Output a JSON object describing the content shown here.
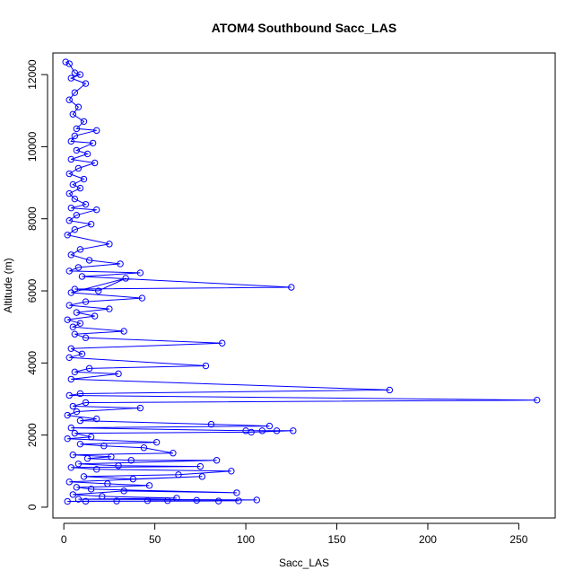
{
  "chart_data": {
    "type": "scatter",
    "title": "ATOM4 Southbound Sacc_LAS",
    "xlabel": "Sacc_LAS",
    "ylabel": "Altitude (m)",
    "xlim": [
      -6,
      270
    ],
    "ylim": [
      -300,
      12600
    ],
    "xticks": [
      0,
      50,
      100,
      150,
      200,
      250
    ],
    "yticks": [
      0,
      2000,
      4000,
      6000,
      8000,
      10000,
      12000
    ],
    "grid": false,
    "legend": "none",
    "series": [
      {
        "color": "#0000ff",
        "marker": "open-circle",
        "line": true,
        "points": [
          [
            1,
            12350
          ],
          [
            3,
            12300
          ],
          [
            6,
            12050
          ],
          [
            9,
            12000
          ],
          [
            4,
            11900
          ],
          [
            12,
            11750
          ],
          [
            6,
            11500
          ],
          [
            3,
            11300
          ],
          [
            8,
            11100
          ],
          [
            5,
            10900
          ],
          [
            11,
            10700
          ],
          [
            7,
            10500
          ],
          [
            18,
            10450
          ],
          [
            6,
            10300
          ],
          [
            4,
            10150
          ],
          [
            16,
            10100
          ],
          [
            7,
            9900
          ],
          [
            13,
            9800
          ],
          [
            4,
            9650
          ],
          [
            17,
            9550
          ],
          [
            8,
            9400
          ],
          [
            3,
            9250
          ],
          [
            11,
            9100
          ],
          [
            5,
            8950
          ],
          [
            9,
            8850
          ],
          [
            3,
            8700
          ],
          [
            6,
            8550
          ],
          [
            12,
            8400
          ],
          [
            4,
            8300
          ],
          [
            18,
            8250
          ],
          [
            7,
            8100
          ],
          [
            3,
            7950
          ],
          [
            15,
            7850
          ],
          [
            6,
            7700
          ],
          [
            2,
            7550
          ],
          [
            25,
            7300
          ],
          [
            9,
            7150
          ],
          [
            4,
            7000
          ],
          [
            14,
            6850
          ],
          [
            31,
            6750
          ],
          [
            8,
            6650
          ],
          [
            3,
            6550
          ],
          [
            42,
            6500
          ],
          [
            10,
            6400
          ],
          [
            125,
            6100
          ],
          [
            6,
            6050
          ],
          [
            19,
            6000
          ],
          [
            34,
            6350
          ],
          [
            4,
            5950
          ],
          [
            43,
            5800
          ],
          [
            12,
            5700
          ],
          [
            3,
            5600
          ],
          [
            25,
            5500
          ],
          [
            7,
            5400
          ],
          [
            17,
            5300
          ],
          [
            2,
            5200
          ],
          [
            9,
            5100
          ],
          [
            5,
            5000
          ],
          [
            33,
            4880
          ],
          [
            6,
            4800
          ],
          [
            12,
            4700
          ],
          [
            87,
            4550
          ],
          [
            4,
            4400
          ],
          [
            10,
            4250
          ],
          [
            3,
            4150
          ],
          [
            78,
            3920
          ],
          [
            14,
            3850
          ],
          [
            6,
            3750
          ],
          [
            30,
            3700
          ],
          [
            4,
            3550
          ],
          [
            179,
            3250
          ],
          [
            9,
            3150
          ],
          [
            3,
            3100
          ],
          [
            260,
            2970
          ],
          [
            12,
            2900
          ],
          [
            5,
            2800
          ],
          [
            42,
            2750
          ],
          [
            7,
            2650
          ],
          [
            2,
            2550
          ],
          [
            18,
            2450
          ],
          [
            9,
            2400
          ],
          [
            81,
            2300
          ],
          [
            113,
            2250
          ],
          [
            4,
            2200
          ],
          [
            100,
            2120
          ],
          [
            109,
            2120
          ],
          [
            117,
            2120
          ],
          [
            126,
            2120
          ],
          [
            103,
            2080
          ],
          [
            6,
            2050
          ],
          [
            15,
            1950
          ],
          [
            2,
            1900
          ],
          [
            51,
            1800
          ],
          [
            9,
            1750
          ],
          [
            22,
            1700
          ],
          [
            44,
            1650
          ],
          [
            60,
            1500
          ],
          [
            5,
            1450
          ],
          [
            26,
            1400
          ],
          [
            13,
            1350
          ],
          [
            37,
            1300
          ],
          [
            84,
            1300
          ],
          [
            8,
            1200
          ],
          [
            30,
            1150
          ],
          [
            75,
            1130
          ],
          [
            4,
            1100
          ],
          [
            18,
            1050
          ],
          [
            92,
            1000
          ],
          [
            63,
            900
          ],
          [
            11,
            850
          ],
          [
            38,
            780
          ],
          [
            76,
            850
          ],
          [
            3,
            700
          ],
          [
            24,
            650
          ],
          [
            47,
            600
          ],
          [
            7,
            550
          ],
          [
            15,
            500
          ],
          [
            95,
            400
          ],
          [
            33,
            450
          ],
          [
            5,
            350
          ],
          [
            21,
            300
          ],
          [
            62,
            250
          ],
          [
            8,
            220
          ],
          [
            106,
            200
          ],
          [
            73,
            190
          ],
          [
            46,
            180
          ],
          [
            85,
            170
          ],
          [
            2,
            160
          ],
          [
            29,
            170
          ],
          [
            12,
            165
          ],
          [
            96,
            175
          ],
          [
            57,
            180
          ]
        ]
      }
    ]
  }
}
